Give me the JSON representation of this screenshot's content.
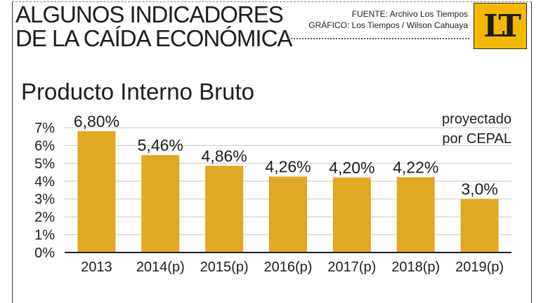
{
  "header": {
    "title_line1": "ALGUNOS INDICADORES",
    "title_line2": "DE LA CAÍDA ECONÓMICA",
    "source": "FUENTE: Archivo Los Tiempos",
    "graphic": "GRÁFICO: Los Tiempos / Wilson Cahuaya",
    "logo_text": "LT"
  },
  "note": {
    "line1": "proyectado",
    "line2": "por CEPAL"
  },
  "colors": {
    "bar": "#e0a823",
    "grid": "#c8c8c8",
    "logo": "#f5b800"
  },
  "chart_data": {
    "type": "bar",
    "title": "Producto Interno Bruto",
    "xlabel": "",
    "ylabel": "",
    "categories": [
      "2013",
      "2014(p)",
      "2015(p)",
      "2016(p)",
      "2017(p)",
      "2018(p)",
      "2019(p)"
    ],
    "values": [
      6.8,
      5.46,
      4.86,
      4.26,
      4.2,
      4.22,
      3.0
    ],
    "data_labels": [
      "6,80%",
      "5,46%",
      "4,86%",
      "4,26%",
      "4,20%",
      "4,22%",
      "3,0%"
    ],
    "yticks": [
      "0%",
      "1%",
      "2%",
      "3%",
      "4%",
      "5%",
      "6%",
      "7%"
    ],
    "ylim": [
      0,
      7
    ],
    "grid": true,
    "legend": "none"
  }
}
